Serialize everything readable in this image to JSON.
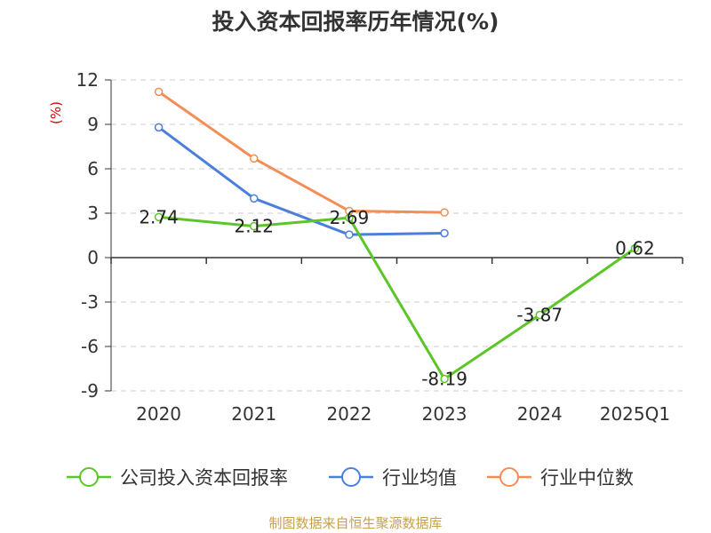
{
  "chart_data": {
    "type": "line",
    "title": "投入资本回报率历年情况(%)",
    "ylabel": "(%)",
    "categories": [
      "2020",
      "2021",
      "2022",
      "2023",
      "2024",
      "2025Q1"
    ],
    "ylim": [
      -9,
      12
    ],
    "yticks": [
      12,
      9,
      6,
      3,
      0,
      -3,
      -6,
      -9
    ],
    "grid": true,
    "legend_position": "bottom",
    "series": [
      {
        "name": "公司投入资本回报率",
        "color": "#5cc52a",
        "values": [
          2.74,
          2.12,
          2.69,
          -8.19,
          -3.87,
          0.62
        ],
        "labels": [
          "2.74",
          "2.12",
          "2.69",
          "-8.19",
          "-3.87",
          "0.62"
        ]
      },
      {
        "name": "行业均值",
        "color": "#4a7fdc",
        "values": [
          8.8,
          4.0,
          1.55,
          1.65,
          null,
          null
        ]
      },
      {
        "name": "行业中位数",
        "color": "#f58d56",
        "values": [
          11.2,
          6.7,
          3.15,
          3.05,
          null,
          null
        ]
      }
    ]
  },
  "footer": {
    "source": "制图数据来自恒生聚源数据库"
  }
}
